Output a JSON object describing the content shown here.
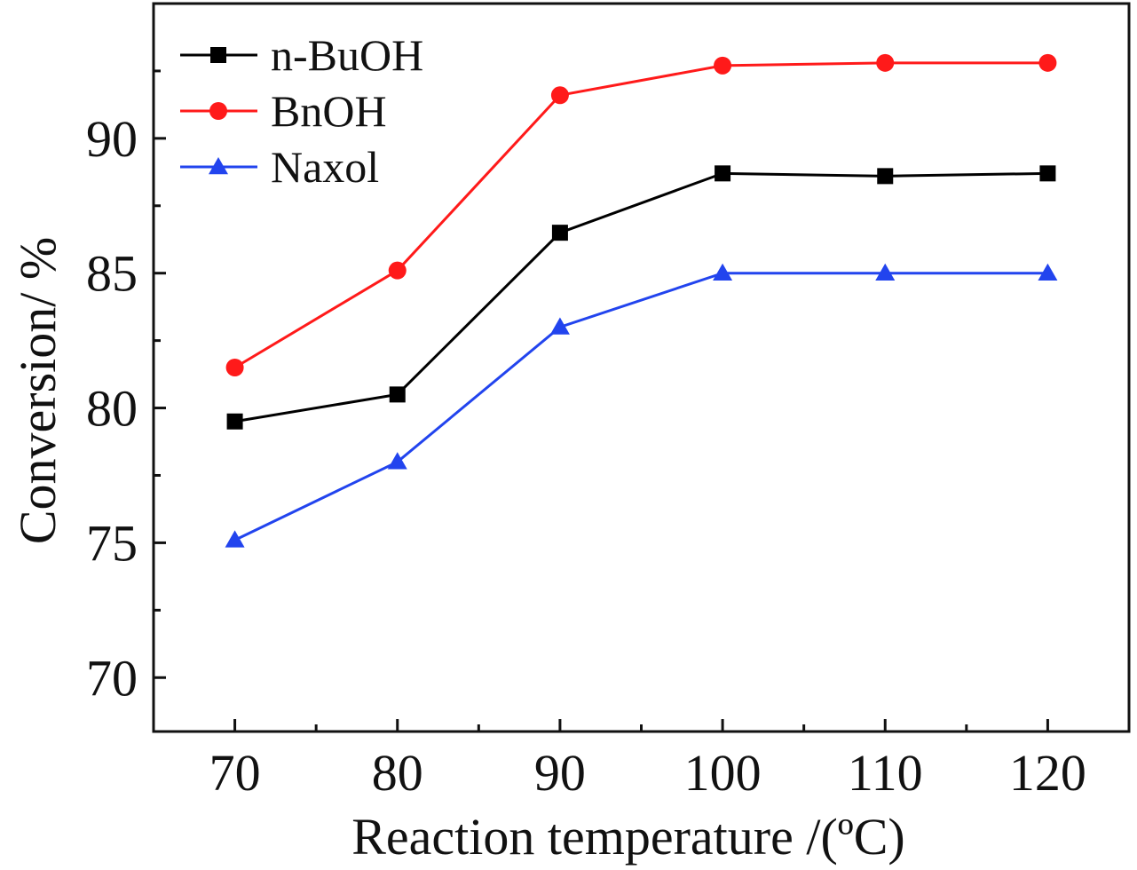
{
  "chart_data": {
    "type": "line",
    "xlabel": "Reaction temperature /(ºC)",
    "ylabel": "Conversion/ %",
    "x": [
      70,
      80,
      90,
      100,
      110,
      120
    ],
    "xlim": [
      65,
      125
    ],
    "ylim": [
      68,
      95
    ],
    "xticks": [
      70,
      80,
      90,
      100,
      110,
      120
    ],
    "xtick_labels": [
      "70",
      "80",
      "90",
      "100",
      "110",
      "120"
    ],
    "yticks": [
      70,
      75,
      80,
      85,
      90
    ],
    "ytick_labels": [
      "70",
      "75",
      "80",
      "85",
      "90"
    ],
    "grid": false,
    "legend_position": "top-left",
    "series": [
      {
        "name": "n-BuOH",
        "color": "#000000",
        "marker": "square",
        "values": [
          79.5,
          80.5,
          86.5,
          88.7,
          88.6,
          88.7
        ]
      },
      {
        "name": "BnOH",
        "color": "#ff1a1a",
        "marker": "circle",
        "values": [
          81.5,
          85.1,
          91.6,
          92.7,
          92.8,
          92.8
        ]
      },
      {
        "name": "Naxol",
        "color": "#2244ee",
        "marker": "triangle",
        "values": [
          75.1,
          78.0,
          83.0,
          85.0,
          85.0,
          85.0
        ]
      }
    ]
  }
}
